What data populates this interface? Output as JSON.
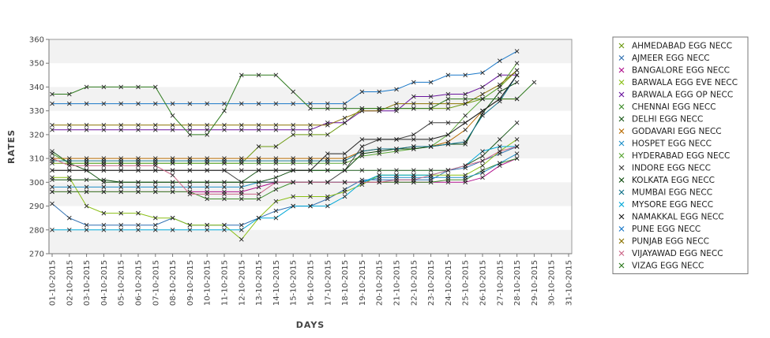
{
  "chart_data": {
    "type": "line",
    "xlabel": "DAYS",
    "ylabel": "RATES",
    "ylim": [
      270,
      360
    ],
    "yticks": [
      270,
      280,
      290,
      300,
      310,
      320,
      330,
      340,
      350,
      360
    ],
    "grid": "alternating horizontal bands",
    "legend_position": "right",
    "categories": [
      "01-10-2015",
      "02-10-2015",
      "03-10-2015",
      "04-10-2015",
      "05-10-2015",
      "06-10-2015",
      "07-10-2015",
      "08-10-2015",
      "09-10-2015",
      "10-10-2015",
      "11-10-2015",
      "12-10-2015",
      "13-10-2015",
      "14-10-2015",
      "15-10-2015",
      "16-10-2015",
      "17-10-2015",
      "18-10-2015",
      "19-10-2015",
      "20-10-2015",
      "21-10-2015",
      "22-10-2015",
      "23-10-2015",
      "24-10-2015",
      "25-10-2015",
      "26-10-2015",
      "27-10-2015",
      "28-10-2015",
      "29-10-2015",
      "30-10-2015",
      "31-10-2015"
    ],
    "series": [
      {
        "name": "AHMEDABAD EGG NECC",
        "color": "#6e9a12",
        "values": [
          308,
          308,
          308,
          308,
          308,
          308,
          308,
          308,
          308,
          308,
          308,
          308,
          315,
          315,
          320,
          320,
          320,
          325,
          331,
          331,
          331,
          331,
          331,
          331,
          333,
          335,
          340,
          347,
          null,
          null,
          null
        ]
      },
      {
        "name": "AJMEER EGG NECC",
        "color": "#2f6fb0",
        "values": [
          291,
          285,
          282,
          282,
          282,
          282,
          282,
          285,
          282,
          282,
          282,
          282,
          285,
          288,
          290,
          290,
          293,
          297,
          301,
          301,
          301,
          301,
          301,
          305,
          306,
          309,
          312,
          315,
          null,
          null,
          null
        ]
      },
      {
        "name": "BANGALORE EGG NECC",
        "color": "#b0108c",
        "values": [
          296,
          296,
          296,
          296,
          296,
          296,
          296,
          296,
          296,
          296,
          296,
          296,
          298,
          300,
          300,
          300,
          300,
          300,
          300,
          300,
          300,
          300,
          300,
          300,
          300,
          302,
          307,
          310,
          null,
          null,
          null
        ]
      },
      {
        "name": "BARWALA EGG EVE NECC",
        "color": "#8abf16",
        "values": [
          302,
          302,
          290,
          287,
          287,
          287,
          285,
          285,
          282,
          282,
          282,
          276,
          285,
          292,
          294,
          294,
          294,
          296,
          299,
          303,
          303,
          303,
          303,
          303,
          303,
          307,
          313,
          318,
          null,
          null,
          null
        ]
      },
      {
        "name": "BARWALA EGG OP NECC",
        "color": "#6a169e",
        "values": [
          322,
          322,
          322,
          322,
          322,
          322,
          322,
          322,
          322,
          322,
          322,
          322,
          322,
          322,
          322,
          322,
          325,
          325,
          330,
          330,
          330,
          336,
          336,
          337,
          337,
          340,
          345,
          345,
          null,
          null,
          null
        ]
      },
      {
        "name": "CHENNAI EGG NECC",
        "color": "#3e8c2a",
        "values": [
          296,
          296,
          296,
          296,
          296,
          296,
          296,
          296,
          296,
          293,
          293,
          293,
          293,
          297,
          300,
          300,
          300,
          300,
          300,
          300,
          300,
          300,
          300,
          301,
          301,
          305,
          308,
          310,
          null,
          null,
          null
        ]
      },
      {
        "name": "DELHI EGG NECC",
        "color": "#1c5a1c",
        "values": [
          313,
          308,
          305,
          300,
          300,
          300,
          300,
          300,
          300,
          300,
          300,
          300,
          305,
          305,
          305,
          305,
          305,
          305,
          305,
          305,
          305,
          305,
          305,
          305,
          307,
          311,
          318,
          325,
          null,
          null,
          null
        ]
      },
      {
        "name": "GODAVARI EGG NECC",
        "color": "#b86a00",
        "values": [
          310,
          310,
          310,
          310,
          310,
          310,
          310,
          310,
          310,
          310,
          310,
          310,
          310,
          310,
          310,
          310,
          310,
          310,
          313,
          314,
          314,
          315,
          315,
          317,
          322,
          330,
          335,
          335,
          null,
          null,
          null
        ]
      },
      {
        "name": "HOSPET EGG NECC",
        "color": "#2090c8",
        "values": [
          298,
          298,
          298,
          298,
          298,
          298,
          298,
          298,
          298,
          298,
          298,
          298,
          300,
          300,
          300,
          300,
          300,
          300,
          300,
          302,
          302,
          302,
          302,
          302,
          302,
          304,
          308,
          312,
          null,
          null,
          null
        ]
      },
      {
        "name": "HYDERABAD EGG NECC",
        "color": "#59a633",
        "values": [
          312,
          308,
          308,
          308,
          308,
          308,
          308,
          308,
          308,
          308,
          308,
          308,
          308,
          308,
          308,
          308,
          308,
          308,
          311,
          312,
          313,
          314,
          315,
          320,
          328,
          335,
          340,
          350,
          null,
          null,
          null
        ]
      },
      {
        "name": "INDORE EGG NECC",
        "color": "#404040",
        "values": [
          305,
          305,
          305,
          305,
          305,
          305,
          305,
          305,
          305,
          305,
          305,
          300,
          300,
          300,
          300,
          300,
          300,
          305,
          315,
          318,
          318,
          320,
          325,
          325,
          325,
          330,
          335,
          345,
          null,
          null,
          null
        ]
      },
      {
        "name": "KOLKATA EGG NECC",
        "color": "#0c4a0c",
        "values": [
          301,
          301,
          301,
          301,
          300,
          300,
          300,
          300,
          300,
          300,
          300,
          300,
          300,
          302,
          305,
          305,
          305,
          305,
          312,
          313,
          314,
          314,
          315,
          316,
          316,
          329,
          338,
          342,
          null,
          null,
          null
        ]
      },
      {
        "name": "MUMBAI EGG NECC",
        "color": "#107088",
        "values": [
          309,
          309,
          309,
          309,
          309,
          309,
          309,
          309,
          309,
          309,
          309,
          309,
          309,
          309,
          309,
          309,
          309,
          309,
          313,
          314,
          314,
          315,
          315,
          316,
          317,
          328,
          334,
          345,
          null,
          null,
          null
        ]
      },
      {
        "name": "MYSORE EGG NECC",
        "color": "#00a8d8",
        "values": [
          280,
          280,
          280,
          280,
          280,
          280,
          280,
          280,
          280,
          280,
          280,
          280,
          285,
          285,
          290,
          290,
          290,
          294,
          300,
          303,
          303,
          303,
          303,
          305,
          307,
          313,
          315,
          315,
          null,
          null,
          null
        ]
      },
      {
        "name": "NAMAKKAL EGG NECC",
        "color": "#202020",
        "values": [
          305,
          305,
          305,
          305,
          305,
          305,
          305,
          305,
          305,
          305,
          305,
          305,
          305,
          305,
          305,
          305,
          312,
          312,
          318,
          318,
          318,
          318,
          318,
          320,
          325,
          330,
          335,
          345,
          null,
          null,
          null
        ]
      },
      {
        "name": "PUNE EGG NECC",
        "color": "#1a78c8",
        "values": [
          333,
          333,
          333,
          333,
          333,
          333,
          333,
          333,
          333,
          333,
          333,
          333,
          333,
          333,
          333,
          333,
          333,
          333,
          338,
          338,
          339,
          342,
          342,
          345,
          345,
          346,
          351,
          355,
          null,
          null,
          null
        ]
      },
      {
        "name": "PUNJAB EGG NECC",
        "color": "#8a7200",
        "values": [
          324,
          324,
          324,
          324,
          324,
          324,
          324,
          324,
          324,
          324,
          324,
          324,
          324,
          324,
          324,
          324,
          324,
          327,
          330,
          330,
          333,
          333,
          333,
          333,
          333,
          337,
          341,
          347,
          null,
          null,
          null
        ]
      },
      {
        "name": "VIJAYAWAD EGG NECC",
        "color": "#cc6688",
        "values": [
          310,
          307,
          307,
          307,
          307,
          307,
          307,
          303,
          295,
          295,
          295,
          295,
          295,
          300,
          300,
          300,
          300,
          300,
          300,
          300,
          301,
          301,
          303,
          305,
          307,
          309,
          313,
          315,
          null,
          null,
          null
        ]
      },
      {
        "name": "VIZAG EGG NECC",
        "color": "#2e7a1e",
        "values": [
          337,
          337,
          340,
          340,
          340,
          340,
          340,
          328,
          320,
          320,
          330,
          345,
          345,
          345,
          338,
          331,
          331,
          331,
          331,
          331,
          331,
          331,
          331,
          335,
          335,
          335,
          335,
          335,
          342,
          null,
          null
        ]
      }
    ]
  }
}
